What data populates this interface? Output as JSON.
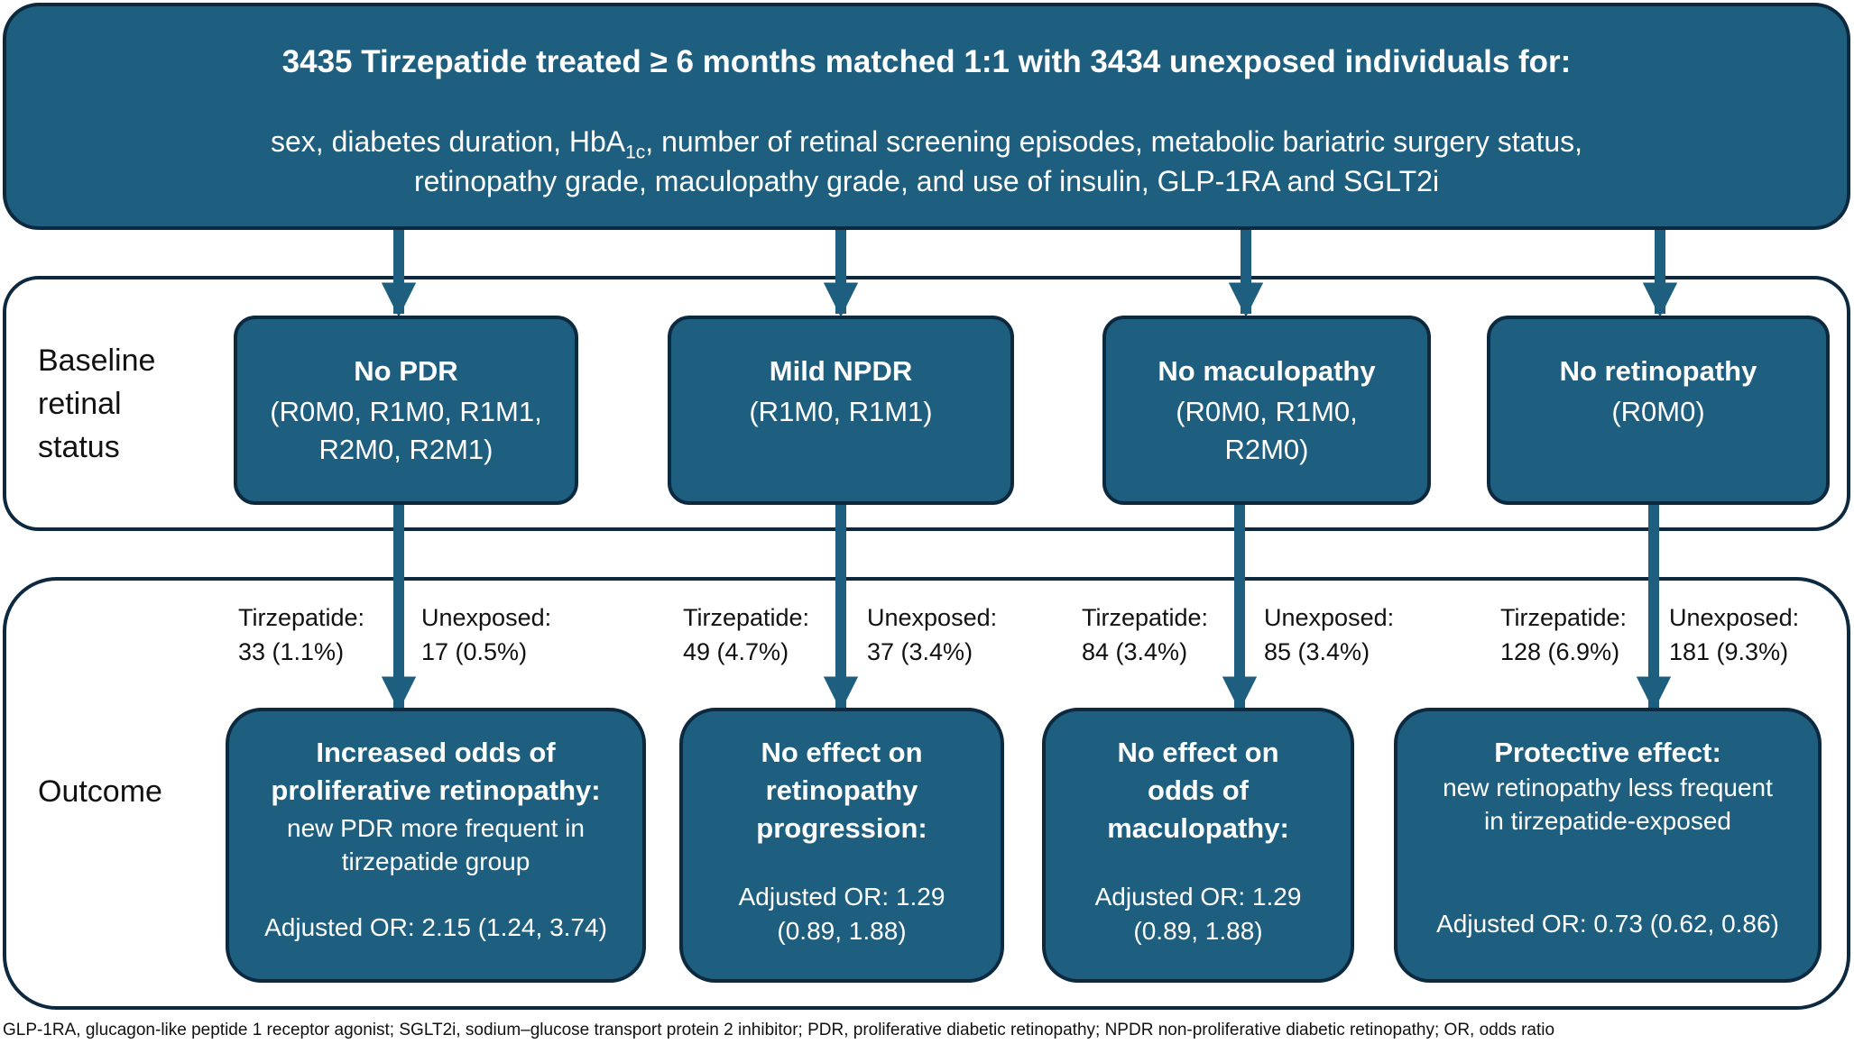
{
  "header": {
    "title": "3435 Tirzepatide treated ≥ 6 months matched 1:1 with 3434 unexposed individuals for:",
    "line1_pre": "sex, diabetes duration, HbA",
    "line1_sub": "1c",
    "line1_post": ", number of retinal screening episodes, metabolic bariatric surgery status,",
    "line2": "retinopathy grade, maculopathy grade, and use of insulin, GLP-1RA and SGLT2i"
  },
  "labels": {
    "baseline": "Baseline\nretinal\nstatus",
    "outcome": "Outcome"
  },
  "baseline": [
    {
      "title": "No PDR",
      "line1": "(R0M0, R1M0, R1M1,",
      "line2": "R2M0, R2M1)"
    },
    {
      "title": "Mild NPDR",
      "line1": "(R1M0, R1M1)",
      "line2": ""
    },
    {
      "title": "No maculopathy",
      "line1": "(R0M0, R1M0,",
      "line2": "R2M0)"
    },
    {
      "title": "No retinopathy",
      "line1": "(R0M0)",
      "line2": ""
    }
  ],
  "counts": [
    {
      "t_label": "Tirzepatide:",
      "t_value": "33 (1.1%)",
      "u_label": "Unexposed:",
      "u_value": "17 (0.5%)"
    },
    {
      "t_label": "Tirzepatide:",
      "t_value": "49 (4.7%)",
      "u_label": "Unexposed:",
      "u_value": "37 (3.4%)"
    },
    {
      "t_label": "Tirzepatide:",
      "t_value": "84 (3.4%)",
      "u_label": "Unexposed:",
      "u_value": "85 (3.4%)"
    },
    {
      "t_label": "Tirzepatide:",
      "t_value": "128 (6.9%)",
      "u_label": "Unexposed:",
      "u_value": "181 (9.3%)"
    }
  ],
  "outcomes": [
    {
      "h1": "Increased odds of",
      "h2": "proliferative retinopathy:",
      "h3": "",
      "d1": "new PDR more frequent in",
      "d2": "tirzepatide group",
      "or1": "Adjusted OR: 2.15 (1.24, 3.74)",
      "or2": ""
    },
    {
      "h1": "No effect on",
      "h2": "retinopathy",
      "h3": "progression:",
      "d1": "",
      "d2": "",
      "or1": "Adjusted OR: 1.29",
      "or2": "(0.89, 1.88)"
    },
    {
      "h1": "No effect on",
      "h2": "odds of",
      "h3": "maculopathy:",
      "d1": "",
      "d2": "",
      "or1": "Adjusted OR: 1.29",
      "or2": "(0.89, 1.88)"
    },
    {
      "h1": "Protective effect:",
      "h2": "",
      "h3": "",
      "d1": "new retinopathy less frequent",
      "d2": "in tirzepatide-exposed",
      "or1": "Adjusted OR: 0.73 (0.62, 0.86)",
      "or2": ""
    }
  ],
  "footnote": "GLP-1RA, glucagon-like peptide 1 receptor agonist; SGLT2i, sodium–glucose transport protein 2 inhibitor; PDR, proliferative diabetic retinopathy; NPDR non-proliferative diabetic retinopathy; OR, odds ratio",
  "colors": {
    "box_fill": "#1e5f80",
    "box_border": "#0d2940",
    "panel_border": "#0d2940"
  }
}
